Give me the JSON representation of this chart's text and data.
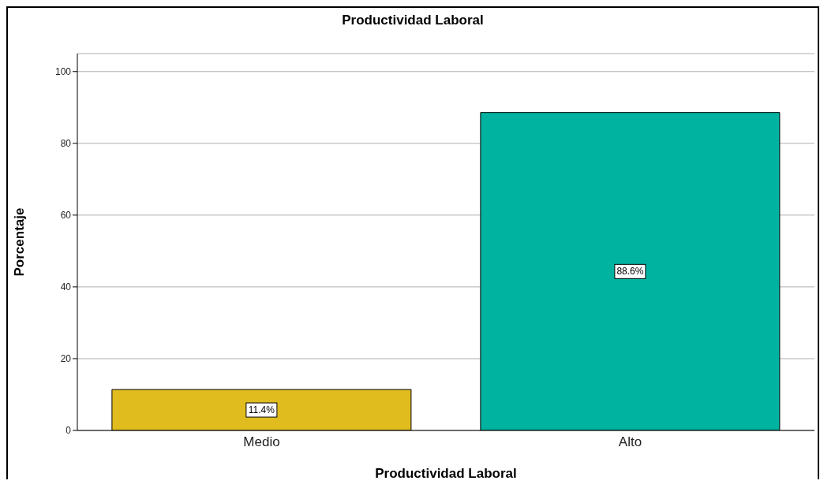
{
  "chart_data": {
    "type": "bar",
    "title": "Productividad Laboral",
    "xlabel": "Productividad Laboral",
    "ylabel": "Porcentaje",
    "categories": [
      "Medio",
      "Alto"
    ],
    "values": [
      11.4,
      88.6
    ],
    "colors": [
      "#e1bc1f",
      "#00b3a0"
    ],
    "value_labels": [
      "11.4%",
      "88.6%"
    ],
    "ylim": [
      0,
      105
    ],
    "yticks": [
      0,
      20,
      40,
      60,
      80,
      100
    ],
    "grid": "y"
  }
}
